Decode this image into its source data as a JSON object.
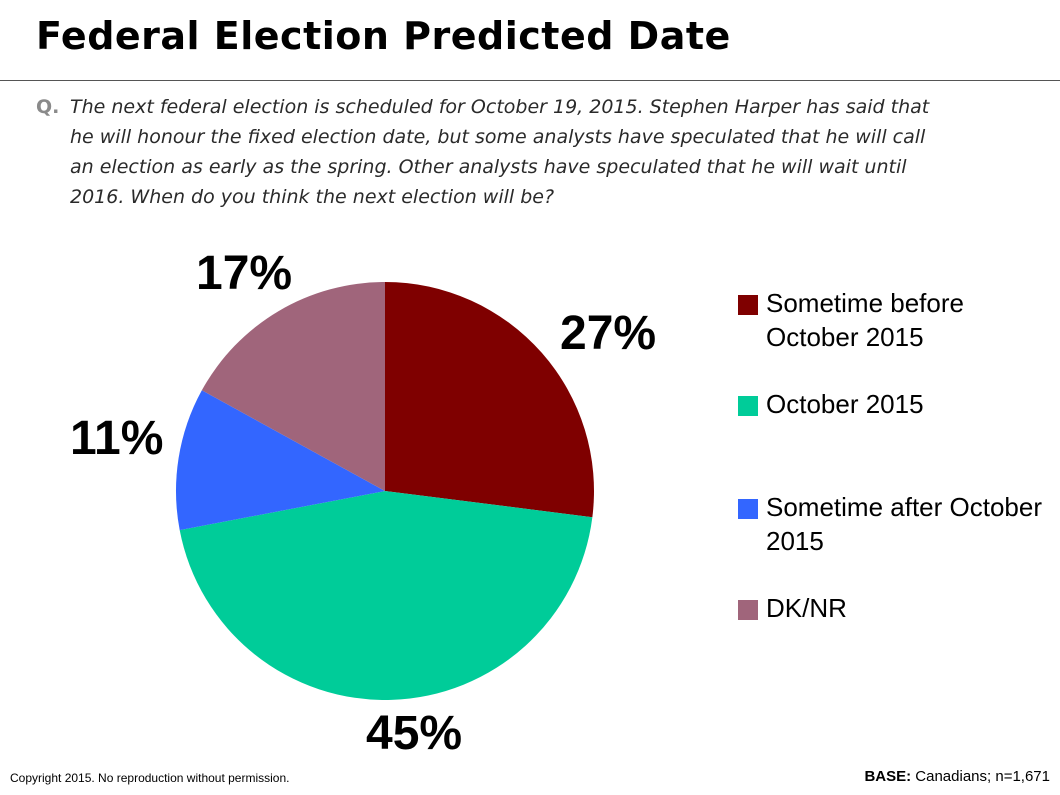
{
  "title": "Federal Election Predicted Date",
  "question": {
    "prefix": "Q.",
    "text": "The next federal election is scheduled for October 19, 2015. Stephen Harper has said that he will honour the fixed election date, but some analysts have speculated that he will call an election as early as the spring. Other analysts have speculated that he will wait until 2016. When do you think the next election will be?"
  },
  "chart_data": {
    "type": "pie",
    "categories": [
      "Sometime before October 2015",
      "October 2015",
      "Sometime after October 2015",
      "DK/NR"
    ],
    "values": [
      27,
      45,
      11,
      17
    ],
    "labels": [
      "27%",
      "45%",
      "11%",
      "17%"
    ],
    "colors": [
      "#7f0000",
      "#00cc99",
      "#3366ff",
      "#a0657b"
    ],
    "legend_position": "right"
  },
  "legend": {
    "items": [
      {
        "label": "Sometime before October 2015",
        "color": "#7f0000"
      },
      {
        "label": "October 2015",
        "color": "#00cc99"
      },
      {
        "label": "Sometime after October 2015",
        "color": "#3366ff"
      },
      {
        "label": "DK/NR",
        "color": "#a0657b"
      }
    ]
  },
  "footer": {
    "copyright": "Copyright 2015. No reproduction without permission.",
    "base_label": "BASE:",
    "base_text": " Canadians; n=1,671"
  }
}
